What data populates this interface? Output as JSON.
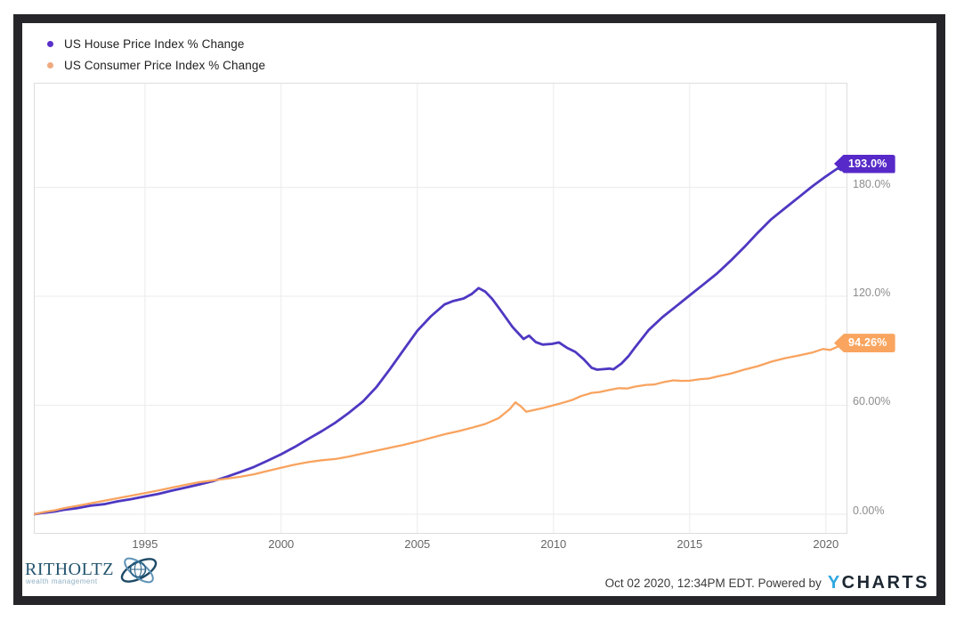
{
  "chart_data": {
    "type": "line",
    "title": "",
    "xlabel": "",
    "ylabel": "",
    "xlim": [
      1990.92,
      2020.79
    ],
    "ylim": [
      -10.8,
      237.6
    ],
    "grid": true,
    "legend_position": "top-left",
    "grid_color": "#edeaec",
    "border_color": "#dddddd",
    "x_axis": {
      "ticks": [
        1995,
        2000,
        2005,
        2010,
        2015,
        2020
      ],
      "labels": [
        "1995",
        "2000",
        "2005",
        "2010",
        "2015",
        "2020"
      ]
    },
    "y_axis": {
      "ticks": [
        {
          "value": 0,
          "label": "0.00%"
        },
        {
          "value": 60,
          "label": "60.00%"
        },
        {
          "value": 120,
          "label": "120.0%"
        },
        {
          "value": 180,
          "label": "180.0%"
        }
      ]
    },
    "series": [
      {
        "name": "US House Price Index % Change",
        "color": "#4e38c2",
        "dot_color": "#5b2fc9",
        "badge_color": "#5629c8",
        "line_width": 2.8,
        "end_value": 193.0,
        "end_label": "193.0%",
        "points": [
          [
            1990.92,
            0
          ],
          [
            1991.3,
            0.8
          ],
          [
            1991.7,
            1.5
          ],
          [
            1992,
            2.4
          ],
          [
            1992.5,
            3.3
          ],
          [
            1993,
            4.7
          ],
          [
            1993.5,
            5.5
          ],
          [
            1994,
            7.1
          ],
          [
            1994.5,
            8.3
          ],
          [
            1995,
            9.8
          ],
          [
            1995.5,
            11.2
          ],
          [
            1996,
            13
          ],
          [
            1996.5,
            14.7
          ],
          [
            1997,
            16.4
          ],
          [
            1997.5,
            18.2
          ],
          [
            1998,
            20.6
          ],
          [
            1998.5,
            23.2
          ],
          [
            1999,
            26
          ],
          [
            1999.5,
            29.4
          ],
          [
            2000,
            33
          ],
          [
            2000.5,
            37
          ],
          [
            2001,
            41.5
          ],
          [
            2001.5,
            45.8
          ],
          [
            2002,
            50.5
          ],
          [
            2002.5,
            56
          ],
          [
            2003,
            62
          ],
          [
            2003.5,
            70
          ],
          [
            2004,
            80
          ],
          [
            2004.5,
            90.5
          ],
          [
            2005,
            101
          ],
          [
            2005.5,
            109
          ],
          [
            2006,
            115.5
          ],
          [
            2006.3,
            117.3
          ],
          [
            2006.7,
            118.8
          ],
          [
            2007,
            121.3
          ],
          [
            2007.25,
            124.5
          ],
          [
            2007.5,
            122.5
          ],
          [
            2007.75,
            118.5
          ],
          [
            2008,
            113.5
          ],
          [
            2008.5,
            103
          ],
          [
            2008.9,
            96.5
          ],
          [
            2009.1,
            98.3
          ],
          [
            2009.35,
            94.8
          ],
          [
            2009.6,
            93.4
          ],
          [
            2009.95,
            93.8
          ],
          [
            2010.2,
            94.6
          ],
          [
            2010.5,
            91.6
          ],
          [
            2010.8,
            89.4
          ],
          [
            2011.1,
            85.4
          ],
          [
            2011.4,
            80.6
          ],
          [
            2011.6,
            79.6
          ],
          [
            2011.85,
            79.9
          ],
          [
            2012.05,
            80.2
          ],
          [
            2012.2,
            79.8
          ],
          [
            2012.5,
            83
          ],
          [
            2012.75,
            87
          ],
          [
            2013,
            92
          ],
          [
            2013.5,
            101.5
          ],
          [
            2014,
            108.5
          ],
          [
            2014.5,
            114.5
          ],
          [
            2015,
            120.5
          ],
          [
            2015.5,
            126.5
          ],
          [
            2016,
            132.5
          ],
          [
            2016.5,
            139.5
          ],
          [
            2017,
            147
          ],
          [
            2017.5,
            155
          ],
          [
            2018,
            162.5
          ],
          [
            2018.5,
            168.5
          ],
          [
            2019,
            174.5
          ],
          [
            2019.5,
            180.5
          ],
          [
            2020,
            186
          ],
          [
            2020.25,
            188.6
          ],
          [
            2020.45,
            190.6
          ],
          [
            2020.55,
            189.6
          ],
          [
            2020.79,
            193
          ]
        ]
      },
      {
        "name": "US Consumer Price Index % Change",
        "color": "#f8a35f",
        "dot_color": "#efaa80",
        "badge_color": "#f9a55f",
        "line_width": 2.3,
        "end_value": 94.26,
        "end_label": "94.26%",
        "points": [
          [
            1990.92,
            0
          ],
          [
            1991.3,
            1.2
          ],
          [
            1991.7,
            2.2
          ],
          [
            1992,
            3.2
          ],
          [
            1992.5,
            4.6
          ],
          [
            1993,
            6
          ],
          [
            1993.5,
            7.4
          ],
          [
            1994,
            8.8
          ],
          [
            1994.5,
            10.2
          ],
          [
            1995,
            11.6
          ],
          [
            1995.5,
            13.1
          ],
          [
            1996,
            14.7
          ],
          [
            1996.5,
            16.2
          ],
          [
            1997,
            17.6
          ],
          [
            1997.5,
            18.6
          ],
          [
            1998,
            19.6
          ],
          [
            1998.5,
            20.6
          ],
          [
            1999,
            22
          ],
          [
            1999.5,
            23.8
          ],
          [
            2000,
            25.6
          ],
          [
            2000.5,
            27.3
          ],
          [
            2001,
            28.7
          ],
          [
            2001.5,
            29.7
          ],
          [
            2002,
            30.4
          ],
          [
            2002.5,
            31.8
          ],
          [
            2003,
            33.4
          ],
          [
            2003.5,
            35
          ],
          [
            2004,
            36.6
          ],
          [
            2004.5,
            38.2
          ],
          [
            2005,
            40
          ],
          [
            2005.5,
            42
          ],
          [
            2006,
            44
          ],
          [
            2006.5,
            45.7
          ],
          [
            2007,
            47.6
          ],
          [
            2007.5,
            49.7
          ],
          [
            2008,
            53
          ],
          [
            2008.4,
            58
          ],
          [
            2008.6,
            61.6
          ],
          [
            2008.8,
            59.4
          ],
          [
            2009,
            56.4
          ],
          [
            2009.3,
            57.4
          ],
          [
            2009.6,
            58.4
          ],
          [
            2010,
            60
          ],
          [
            2010.4,
            61.6
          ],
          [
            2010.7,
            63
          ],
          [
            2011,
            65
          ],
          [
            2011.4,
            66.8
          ],
          [
            2011.7,
            67.3
          ],
          [
            2012,
            68.3
          ],
          [
            2012.4,
            69.4
          ],
          [
            2012.7,
            69.2
          ],
          [
            2013,
            70.3
          ],
          [
            2013.4,
            71.2
          ],
          [
            2013.7,
            71.4
          ],
          [
            2014,
            72.6
          ],
          [
            2014.4,
            73.7
          ],
          [
            2014.7,
            73.4
          ],
          [
            2015,
            73.5
          ],
          [
            2015.4,
            74.4
          ],
          [
            2015.7,
            74.7
          ],
          [
            2016,
            75.8
          ],
          [
            2016.5,
            77.4
          ],
          [
            2017,
            79.6
          ],
          [
            2017.5,
            81.5
          ],
          [
            2018,
            84
          ],
          [
            2018.5,
            85.9
          ],
          [
            2019,
            87.4
          ],
          [
            2019.5,
            89
          ],
          [
            2019.9,
            91
          ],
          [
            2020.15,
            90.4
          ],
          [
            2020.45,
            92.4
          ],
          [
            2020.79,
            94.26
          ]
        ]
      }
    ]
  },
  "footer": {
    "brand": {
      "name": "RITHOLTZ",
      "sub": "wealth management"
    },
    "timestamp_text": "Oct 02 2020, 12:34PM EDT. Powered by",
    "ycharts_logo": {
      "part1": "Y",
      "part2": "CHARTS"
    }
  },
  "colors": {
    "frame": "#26262a",
    "accent_purple": "#4e38c2",
    "accent_orange": "#f8a35f",
    "ycharts_blue": "#2ea7e0",
    "ritholtz_blue": "#23546e"
  }
}
